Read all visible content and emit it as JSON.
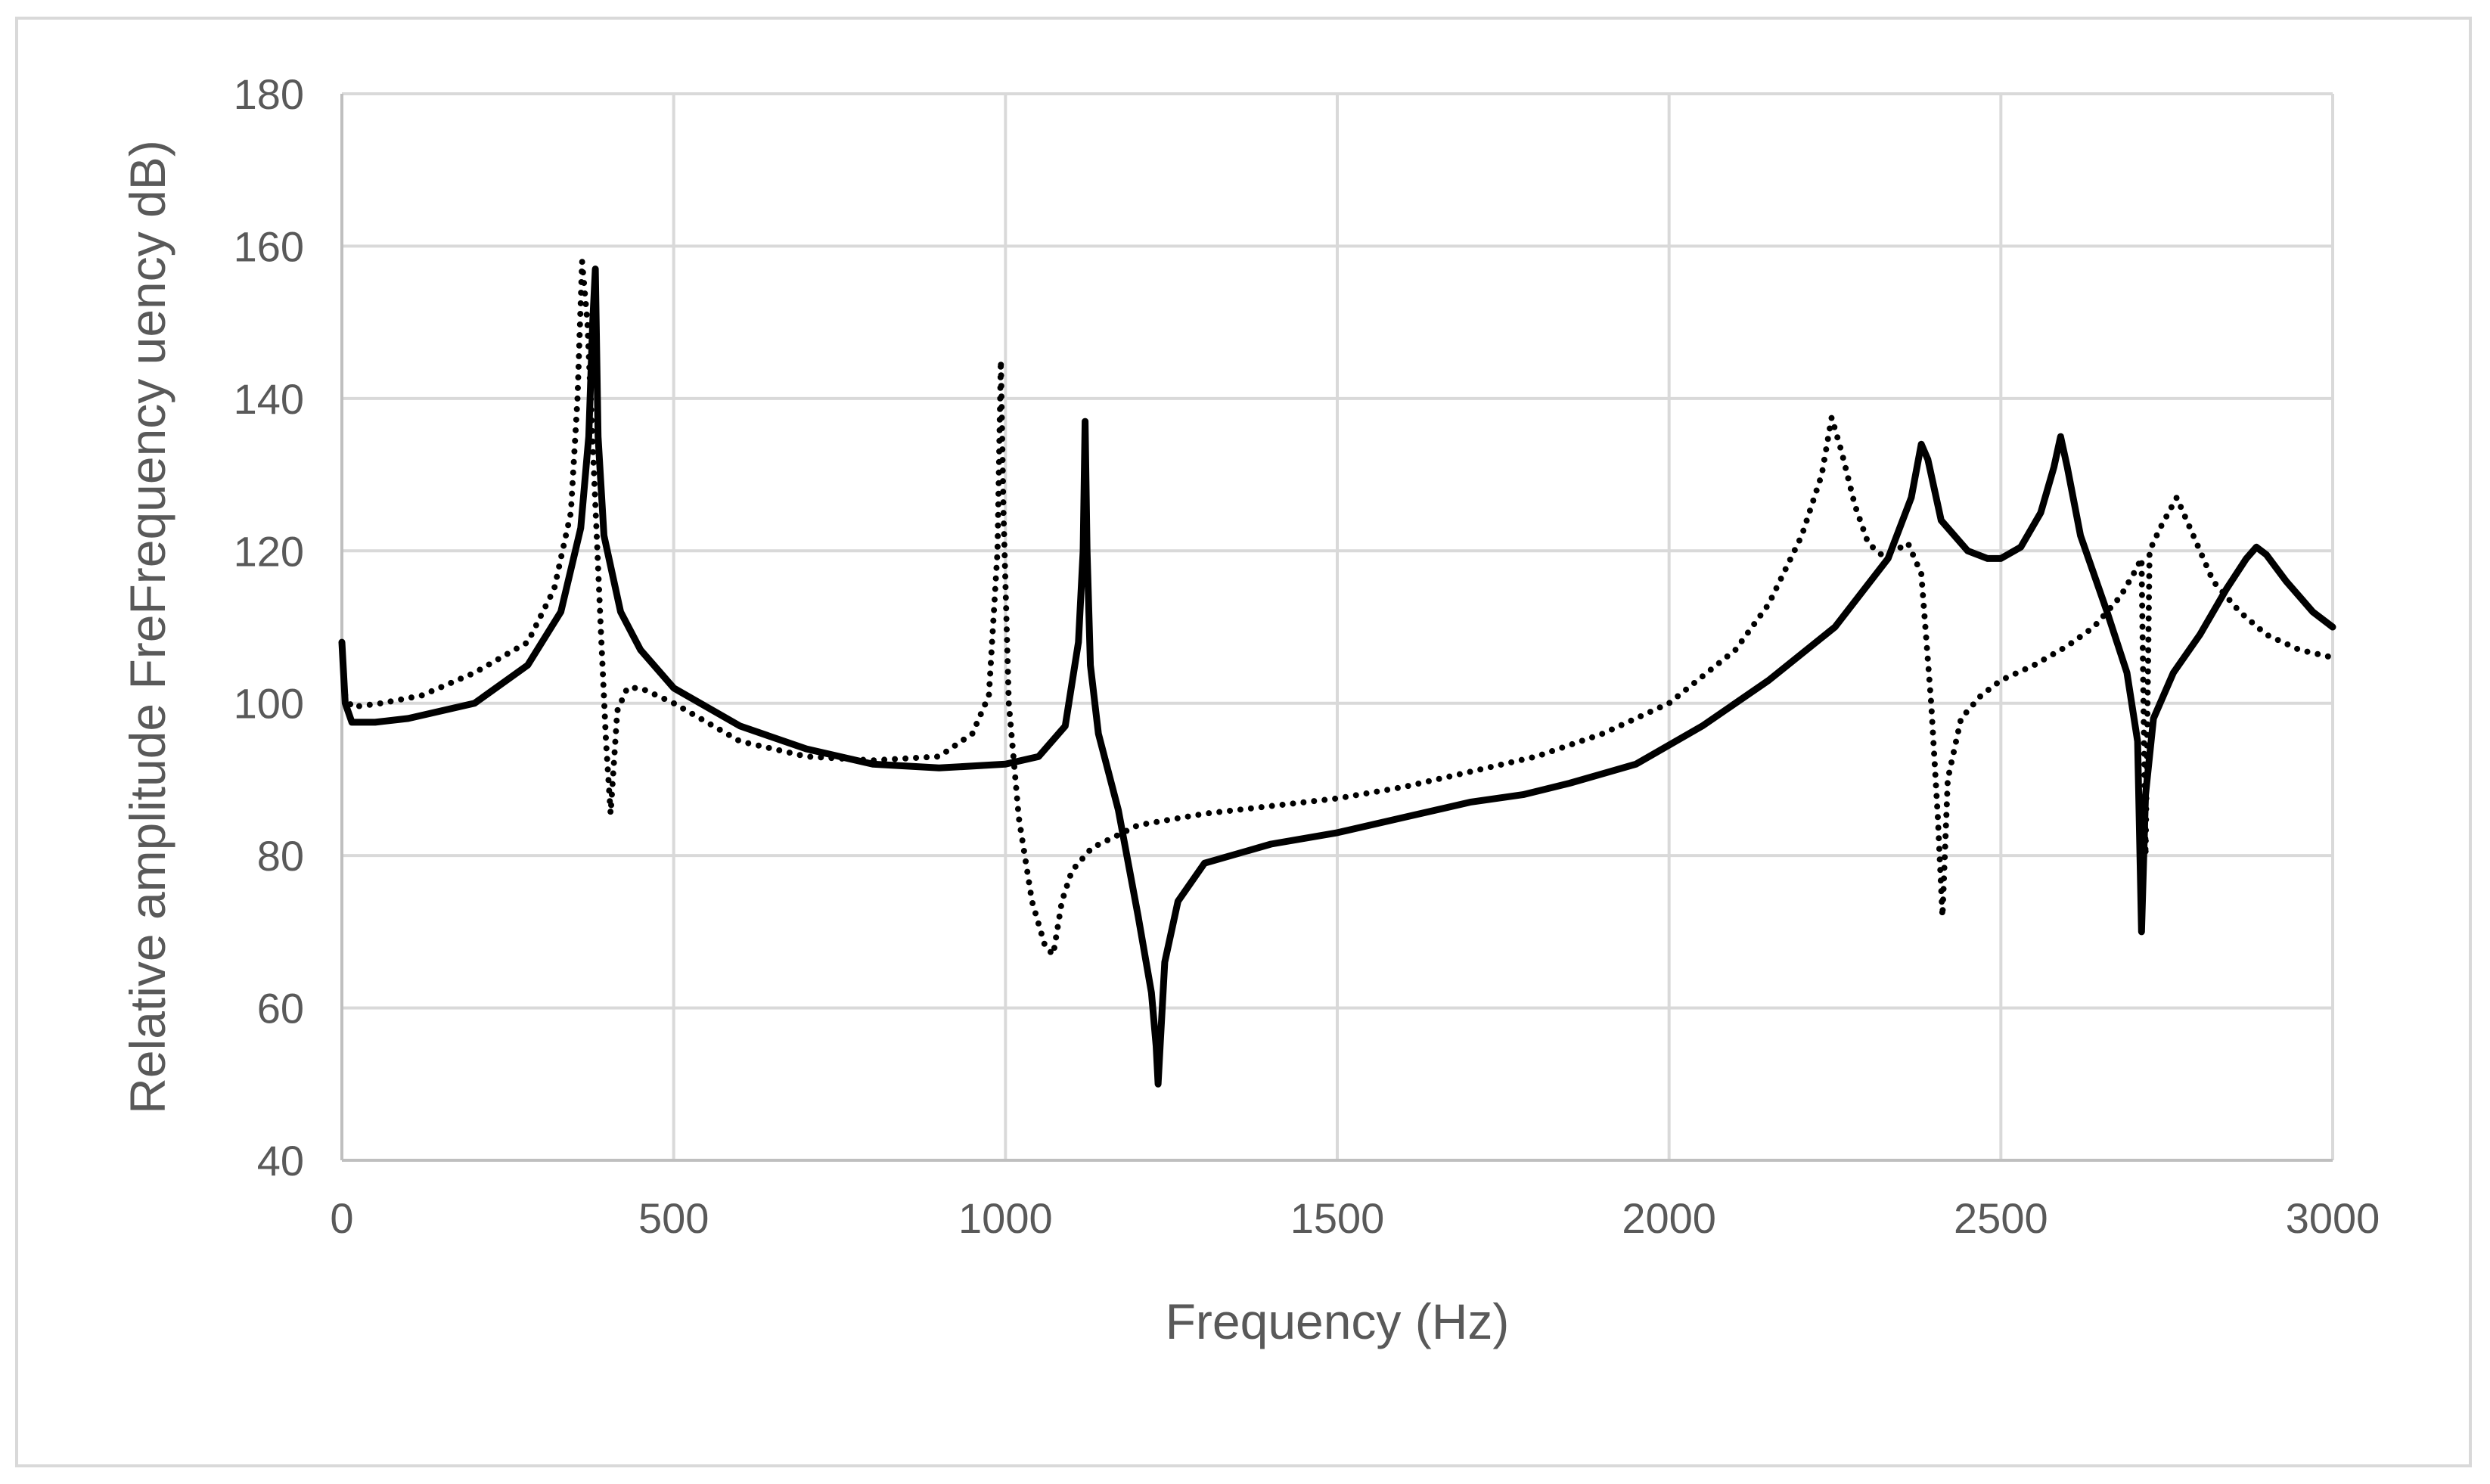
{
  "chart_data": {
    "type": "line",
    "title": "",
    "xlabel": "Frequency (Hz)",
    "ylabel": "Relative amplitude FreFrequency uency dB)",
    "xlim": [
      0,
      3000
    ],
    "ylim": [
      40,
      180
    ],
    "x_ticks": [
      0,
      500,
      1000,
      1500,
      2000,
      2500,
      3000
    ],
    "y_ticks": [
      40,
      60,
      80,
      100,
      120,
      140,
      160,
      180
    ],
    "x_tick_labels": [
      "0",
      "500",
      "1000",
      "1500",
      "2000",
      "2500",
      "3000"
    ],
    "y_tick_labels": [
      "40",
      "60",
      "80",
      "100",
      "120",
      "140",
      "160",
      "180"
    ],
    "grid": true,
    "legend": "none",
    "series": [
      {
        "name": "solid",
        "style": "solid",
        "color": "#000000",
        "x": [
          0,
          5,
          15,
          50,
          100,
          200,
          280,
          330,
          360,
          372,
          378,
          382,
          386,
          395,
          420,
          450,
          500,
          600,
          700,
          800,
          900,
          1000,
          1050,
          1090,
          1110,
          1117,
          1120,
          1123,
          1128,
          1140,
          1170,
          1200,
          1220,
          1227,
          1230,
          1233,
          1240,
          1260,
          1300,
          1400,
          1500,
          1600,
          1700,
          1780,
          1850,
          1950,
          2050,
          2150,
          2250,
          2330,
          2365,
          2380,
          2390,
          2410,
          2450,
          2480,
          2500,
          2530,
          2560,
          2580,
          2590,
          2600,
          2620,
          2660,
          2690,
          2706,
          2712,
          2718,
          2730,
          2760,
          2800,
          2840,
          2870,
          2885,
          2900,
          2930,
          2970,
          3000
        ],
        "y": [
          108,
          100,
          97.5,
          97.5,
          98,
          100,
          105,
          112,
          123,
          135,
          150,
          157,
          135,
          122,
          112,
          107,
          102,
          97,
          94,
          92,
          91.5,
          92,
          93,
          97,
          108,
          120,
          137,
          120,
          105,
          96,
          86,
          72,
          62,
          55,
          50,
          55,
          66,
          74,
          79,
          81.5,
          83,
          85,
          87,
          88,
          89.5,
          92,
          97,
          103,
          110,
          119,
          127,
          134,
          132,
          124,
          120,
          119,
          119,
          120.5,
          125,
          131,
          135,
          131,
          122,
          112,
          104,
          95,
          70,
          88,
          98,
          104,
          109,
          115,
          119,
          120.5,
          119.5,
          116,
          112,
          110
        ]
      },
      {
        "name": "dotted",
        "style": "dotted",
        "color": "#000000",
        "x": [
          0,
          5,
          15,
          60,
          120,
          200,
          280,
          320,
          345,
          355,
          362,
          370,
          380,
          390,
          398,
          405,
          415,
          430,
          450,
          500,
          600,
          700,
          800,
          900,
          950,
          975,
          988,
          993,
          997,
          1005,
          1020,
          1040,
          1060,
          1072,
          1085,
          1100,
          1130,
          1200,
          1300,
          1400,
          1500,
          1600,
          1700,
          1800,
          1900,
          2000,
          2100,
          2150,
          2200,
          2230,
          2245,
          2260,
          2280,
          2300,
          2320,
          2340,
          2360,
          2380,
          2395,
          2405,
          2412,
          2420,
          2440,
          2470,
          2500,
          2550,
          2600,
          2640,
          2680,
          2700,
          2712,
          2718,
          2724,
          2740,
          2765,
          2790,
          2820,
          2860,
          2900,
          2950,
          3000
        ],
        "y": [
          108,
          101,
          99.5,
          100,
          101,
          104,
          108,
          115,
          125,
          140,
          158,
          150,
          130,
          110,
          95,
          85.5,
          99,
          102,
          102,
          100,
          95,
          93,
          92.5,
          93,
          96,
          101,
          120,
          145,
          125,
          100,
          85,
          74,
          68,
          67,
          74,
          78,
          81,
          84,
          85.5,
          86.5,
          87.5,
          89,
          91,
          93,
          96,
          100,
          107,
          113,
          122,
          130,
          137.5,
          133,
          126,
          121,
          119.5,
          120,
          121,
          117,
          100,
          85,
          72,
          90,
          98,
          101,
          103,
          105,
          107.5,
          110,
          114,
          117,
          119,
          80,
          120,
          123,
          127,
          122,
          116,
          112,
          109,
          107,
          106
        ]
      }
    ]
  }
}
